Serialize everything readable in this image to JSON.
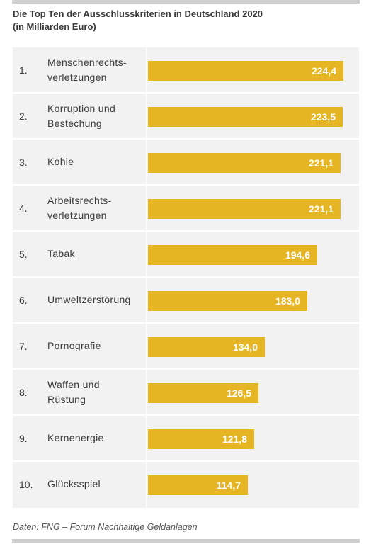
{
  "header": {
    "title_line1": "Die Top Ten der Ausschlusskriterien in Deutschland 2020",
    "title_line2": "(in Milliarden Euro)"
  },
  "footer": {
    "source": "Daten: FNG – Forum Nachhaltige Geldanlagen"
  },
  "colors": {
    "bar": "#e6b523",
    "panel": "#f2f2f2",
    "rule": "#cfcfcf"
  },
  "chart_data": {
    "type": "bar",
    "orientation": "horizontal",
    "title": "Die Top Ten der Ausschlusskriterien in Deutschland 2020",
    "subtitle": "(in Milliarden Euro)",
    "ranks": [
      "1.",
      "2.",
      "3.",
      "4.",
      "5.",
      "6.",
      "7.",
      "8.",
      "9.",
      "10."
    ],
    "categories": [
      "Menschenrechts-\nverletzungen",
      "Korruption und\nBestechung",
      "Kohle",
      "Arbeitsrechts-\nverletzungen",
      "Tabak",
      "Umweltzerstörung",
      "Pornografie",
      "Waffen und\nRüstung",
      "Kernenergie",
      "Glücksspiel"
    ],
    "values": [
      224.4,
      223.5,
      221.1,
      221.1,
      194.6,
      183.0,
      134.0,
      126.5,
      121.8,
      114.7
    ],
    "value_labels": [
      "224,4",
      "223,5",
      "221,1",
      "221,1",
      "194,6",
      "183,0",
      "134,0",
      "126,5",
      "121,8",
      "114,7"
    ],
    "xlim": [
      0,
      224.4
    ],
    "grid": false,
    "legend": "none"
  }
}
